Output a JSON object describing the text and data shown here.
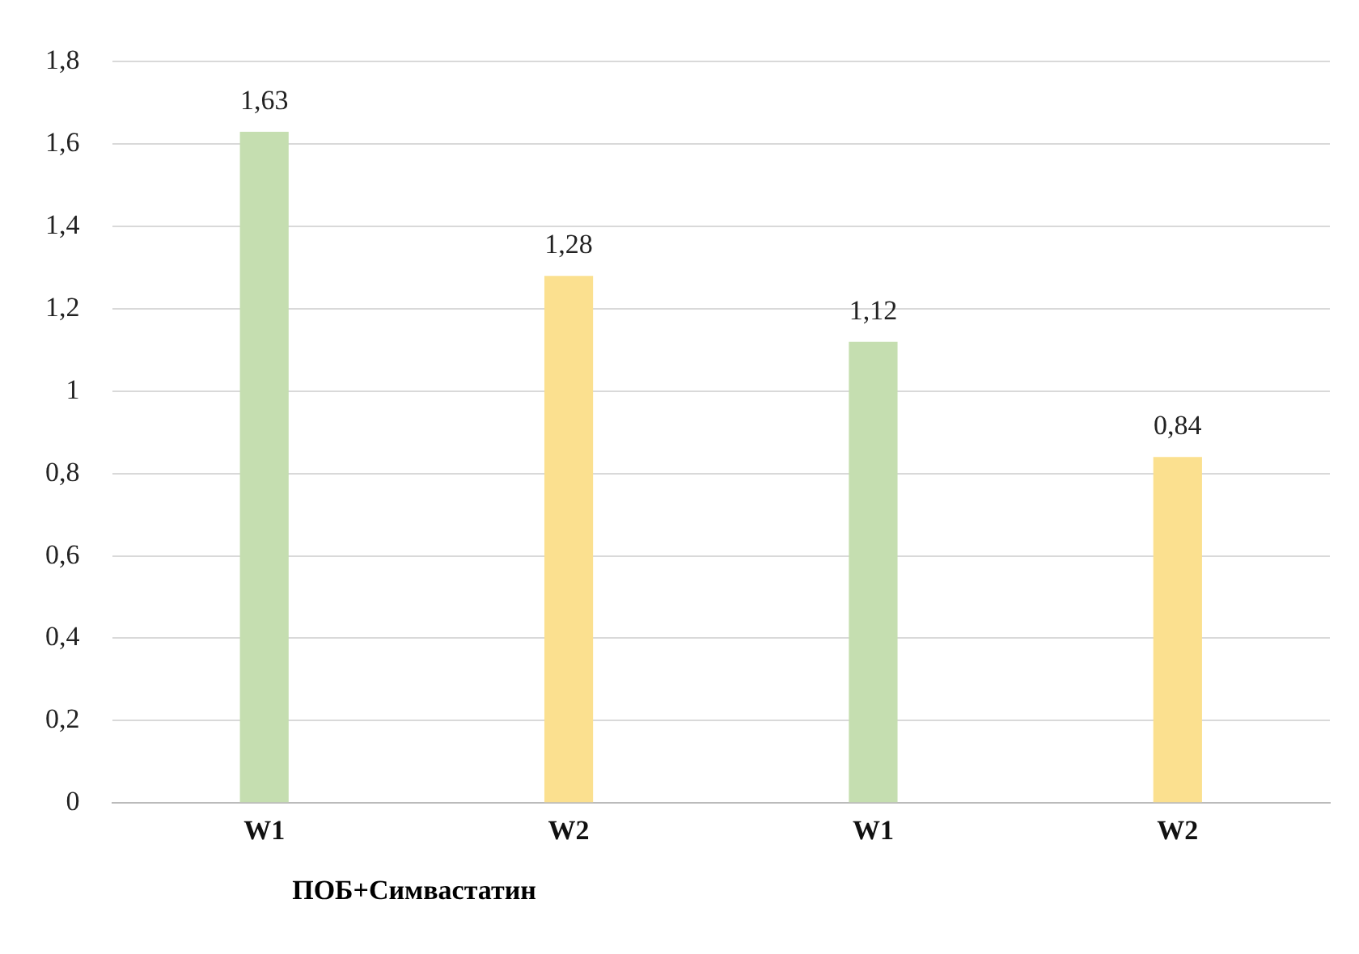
{
  "chart_data": {
    "type": "bar",
    "categories": [
      "W1",
      "W2",
      "W1",
      "W2"
    ],
    "values": [
      1.63,
      1.28,
      1.12,
      0.84
    ],
    "colors": [
      "#c5deb0",
      "#fbe08f",
      "#c5deb0",
      "#fbe08f"
    ],
    "value_labels": [
      "1,63",
      "1,28",
      "1,12",
      "0,84"
    ],
    "ylim": [
      0,
      1.8
    ],
    "yticks": [
      0,
      {
        "value": 0.2,
        "label": "0,2"
      },
      {
        "value": 0.4,
        "label": "0,4"
      },
      {
        "value": 0.6,
        "label": "0,6"
      },
      {
        "value": 0.8,
        "label": "0,8"
      },
      1,
      {
        "value": 1.2,
        "label": "1,2"
      },
      {
        "value": 1.4,
        "label": "1,4"
      },
      {
        "value": 1.6,
        "label": "1,6"
      },
      {
        "value": 1.8,
        "label": "1,8"
      }
    ],
    "grid": "y",
    "annotations": [
      "ПОБ+Симвастатин"
    ]
  }
}
